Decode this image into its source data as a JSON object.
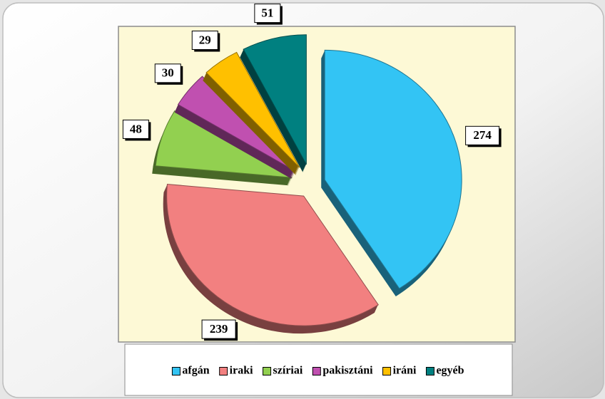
{
  "chart_data": {
    "type": "pie",
    "categories": [
      "afgán",
      "iraki",
      "szíriai",
      "pakisztáni",
      "iráni",
      "egyéb"
    ],
    "values": [
      274,
      239,
      48,
      30,
      29,
      51
    ],
    "colors": [
      "#33c4f4",
      "#f28080",
      "#92d050",
      "#c050b0",
      "#ffc000",
      "#008080"
    ],
    "legend": "bottom"
  }
}
